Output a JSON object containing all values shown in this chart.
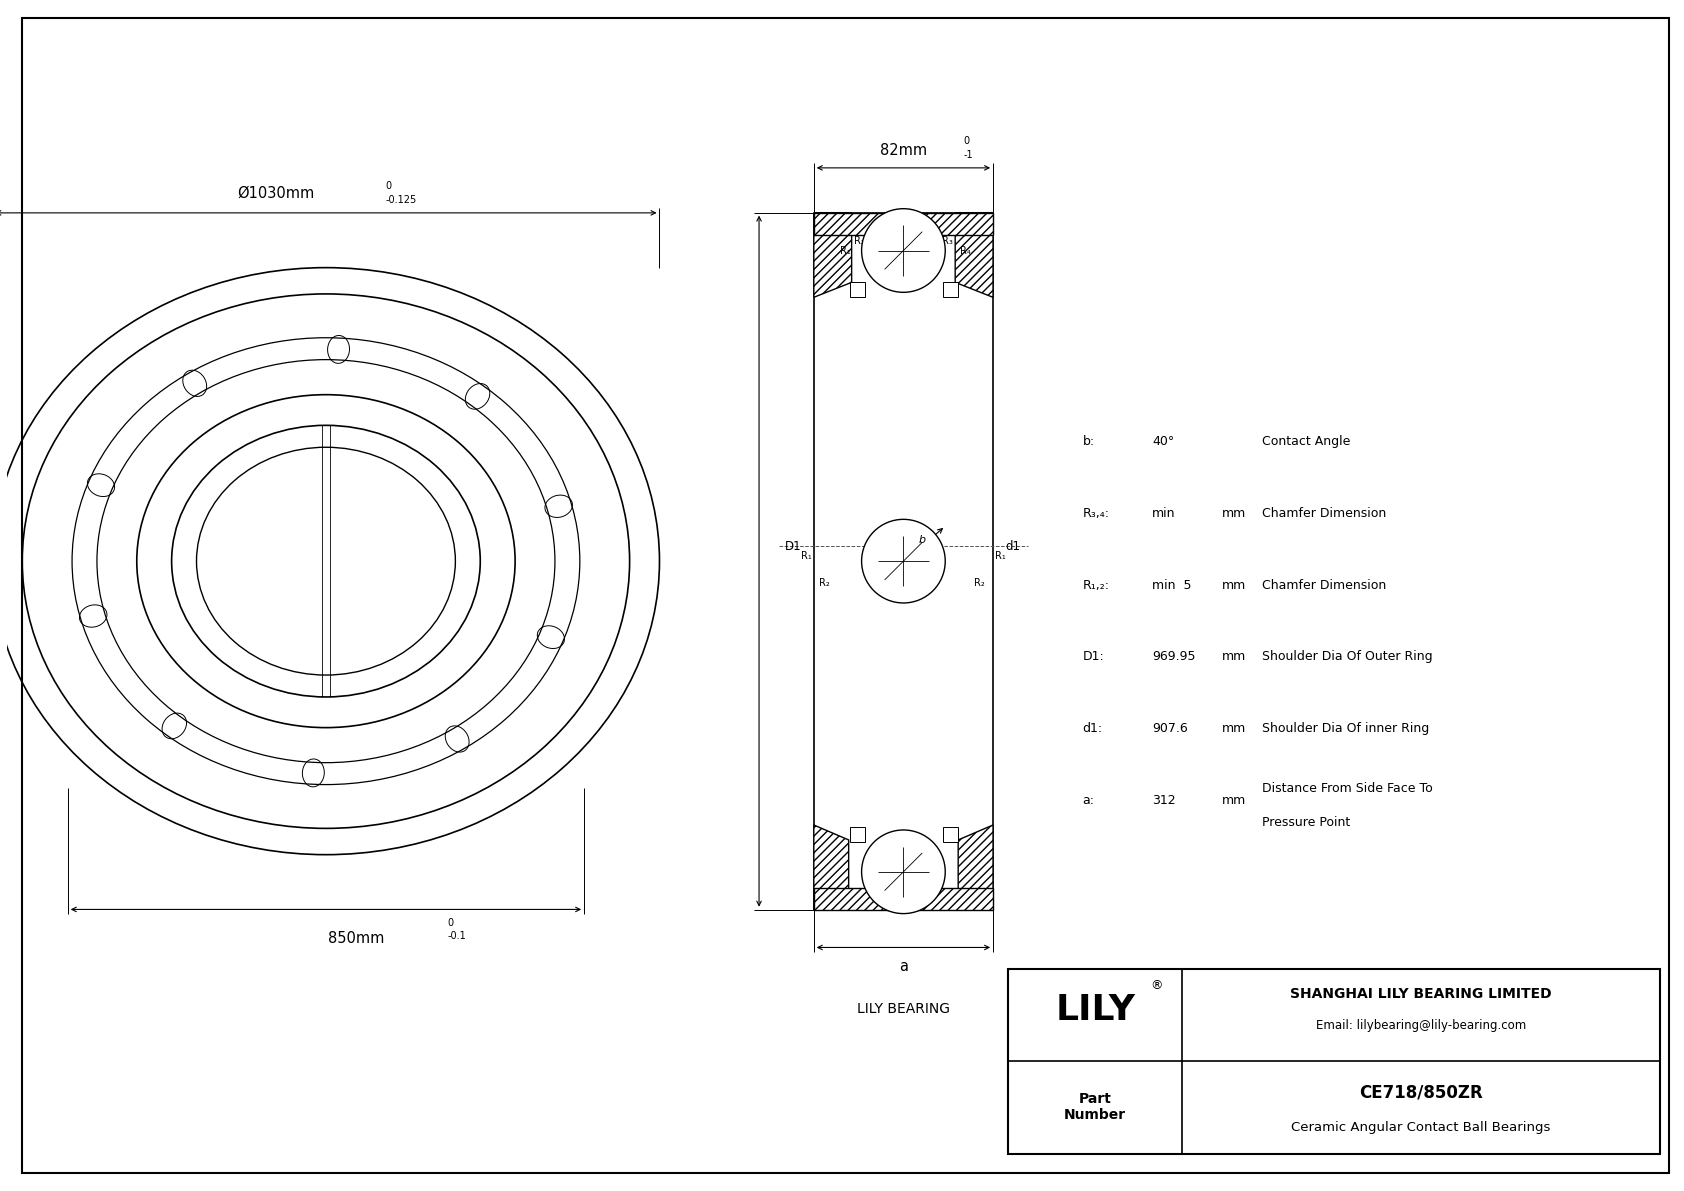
{
  "bg_color": "#ffffff",
  "line_color": "#000000",
  "dim_color": "#000000",
  "title": "CE718/850ZR",
  "subtitle": "Ceramic Angular Contact Ball Bearings",
  "company": "SHANGHAI LILY BEARING LIMITED",
  "email": "Email: lilybearing@lily-bearing.com",
  "lily_label": "LILY BEARING",
  "part_label": "Part\nNumber",
  "outer_dia_label": "Ø1030mm",
  "outer_dia_tol": "-0.125",
  "outer_dia_tol_upper": "0",
  "inner_dia_label": "850mm",
  "inner_dia_tol": "-0.1",
  "inner_dia_tol_upper": "0",
  "width_label": "82mm",
  "width_tol": "-1",
  "width_tol_upper": "0",
  "specs": [
    {
      "symbol": "b:",
      "value": "40°",
      "unit": "",
      "desc": "Contact Angle"
    },
    {
      "symbol": "R₃,₄:",
      "value": "min",
      "unit": "mm",
      "desc": "Chamfer Dimension"
    },
    {
      "symbol": "R₁,₂:",
      "value": "min  5",
      "unit": "mm",
      "desc": "Chamfer Dimension"
    },
    {
      "symbol": "D1:",
      "value": "969.95",
      "unit": "mm",
      "desc": "Shoulder Dia Of Outer Ring"
    },
    {
      "symbol": "d1:",
      "value": "907.6",
      "unit": "mm",
      "desc": "Shoulder Dia Of inner Ring"
    },
    {
      "symbol": "a:",
      "value": "312",
      "unit": "mm",
      "desc": "Distance From Side Face To\nPressure Point"
    }
  ]
}
